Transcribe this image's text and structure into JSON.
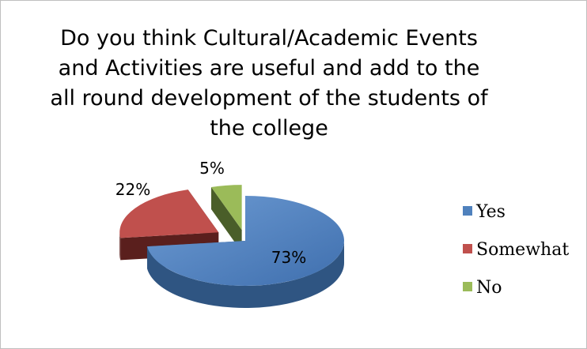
{
  "chart_data": {
    "type": "pie",
    "style": "3d-exploded",
    "title": "Do you think Cultural/Academic Events and Activities are useful and add to the all round development  of the students of the college",
    "categories": [
      "Yes",
      "Somewhat",
      "No"
    ],
    "values": [
      73,
      22,
      5
    ],
    "data_labels": [
      "73%",
      "22%",
      "5%"
    ],
    "colors": [
      "#4f81bd",
      "#c0504d",
      "#9bbb59"
    ],
    "legend_position": "right"
  }
}
